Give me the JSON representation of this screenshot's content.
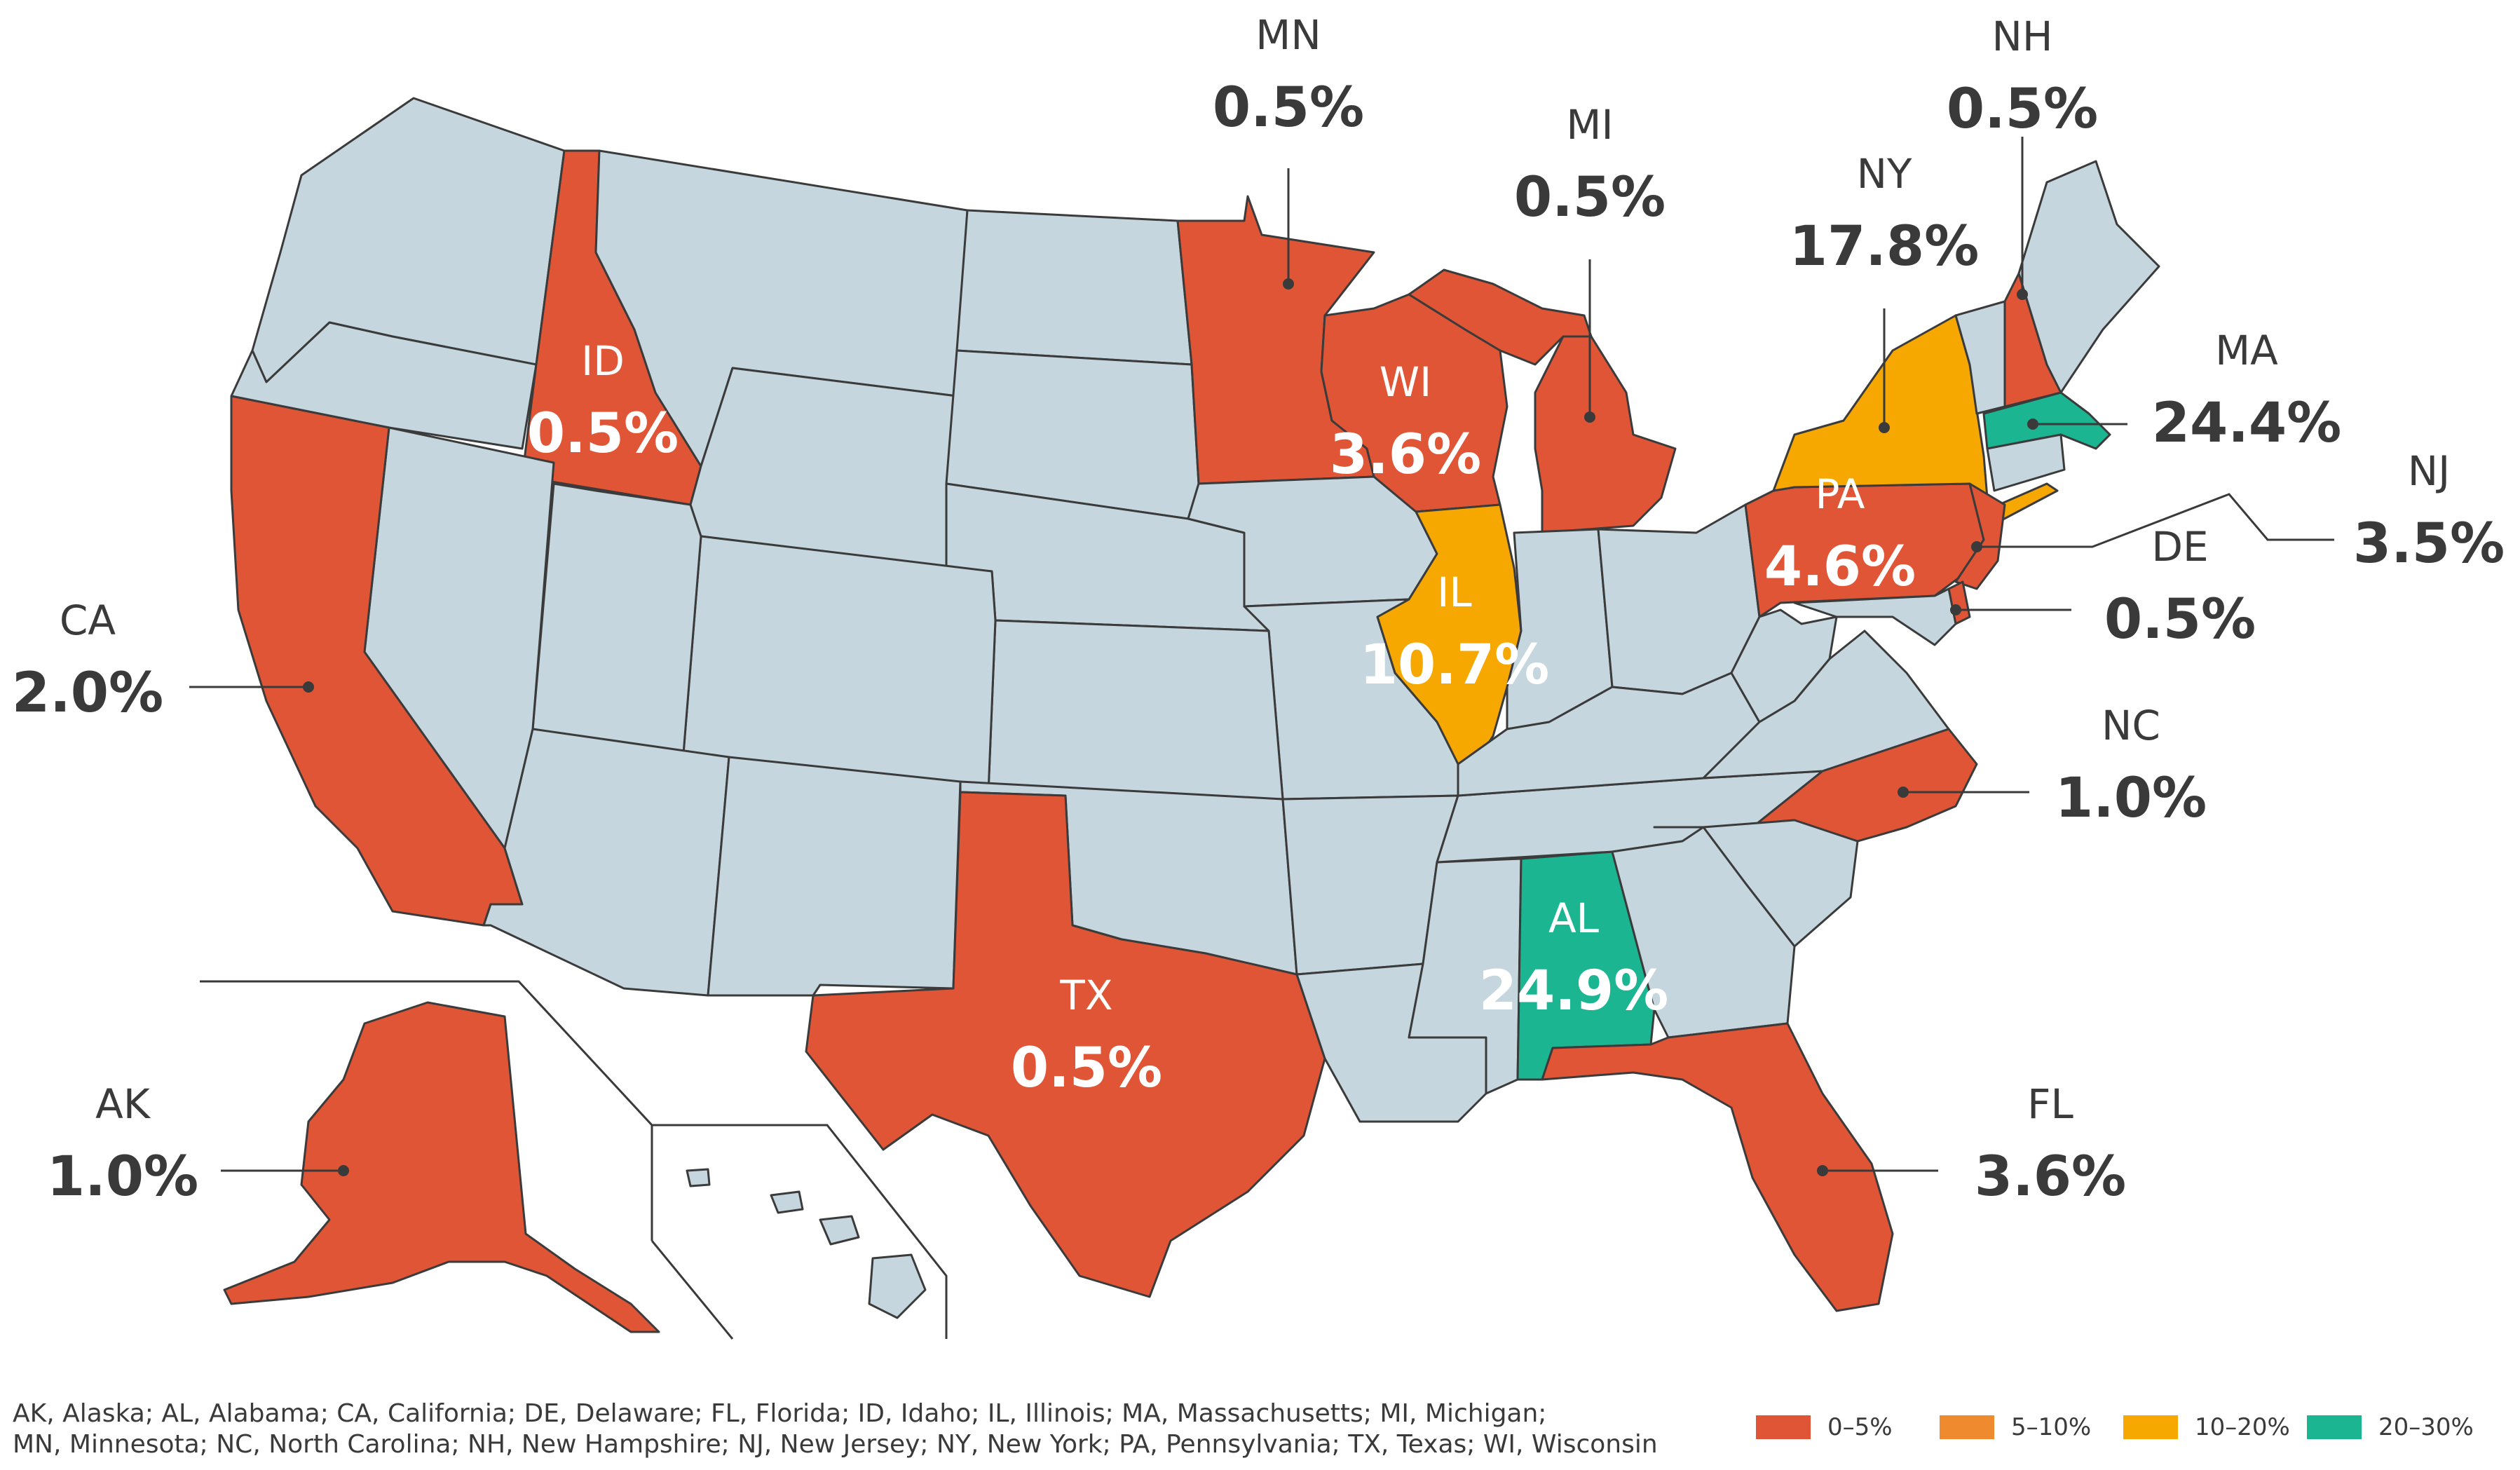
{
  "colors": {
    "bin_0_5": "#e05535",
    "bin_5_10": "#ef8a2e",
    "bin_10_20": "#f6a800",
    "bin_20_30": "#1cb592",
    "no_data": "#c5d6de",
    "border": "#3b3b3b",
    "text": "#3a3a3a"
  },
  "states": [
    {
      "abbr": "MN",
      "value": "0.5%"
    },
    {
      "abbr": "MI",
      "value": "0.5%"
    },
    {
      "abbr": "NY",
      "value": "17.8%"
    },
    {
      "abbr": "NH",
      "value": "0.5%"
    },
    {
      "abbr": "MA",
      "value": "24.4%"
    },
    {
      "abbr": "NJ",
      "value": "3.5%"
    },
    {
      "abbr": "DE",
      "value": "0.5%"
    },
    {
      "abbr": "ID",
      "value": "0.5%"
    },
    {
      "abbr": "WI",
      "value": "3.6%"
    },
    {
      "abbr": "PA",
      "value": "4.6%"
    },
    {
      "abbr": "IL",
      "value": "10.7%"
    },
    {
      "abbr": "CA",
      "value": "2.0%"
    },
    {
      "abbr": "NC",
      "value": "1.0%"
    },
    {
      "abbr": "AL",
      "value": "24.9%"
    },
    {
      "abbr": "TX",
      "value": "0.5%"
    },
    {
      "abbr": "AK",
      "value": "1.0%"
    },
    {
      "abbr": "FL",
      "value": "3.6%"
    }
  ],
  "footnote": {
    "line1": "AK, Alaska; AL, Alabama; CA, California; DE, Delaware; FL, Florida; ID, Idaho; IL, Illinois; MA, Massachusetts; MI, Michigan;",
    "line2": "MN, Minnesota; NC, North Carolina; NH, New Hampshire; NJ, New Jersey; NY, New York; PA, Pennsylvania; TX, Texas; WI, Wisconsin"
  },
  "legend": [
    {
      "label": "0–5%",
      "color": "#e05535"
    },
    {
      "label": "5–10%",
      "color": "#ef8a2e"
    },
    {
      "label": "10–20%",
      "color": "#f6a800"
    },
    {
      "label": "20–30%",
      "color": "#1cb592"
    }
  ]
}
